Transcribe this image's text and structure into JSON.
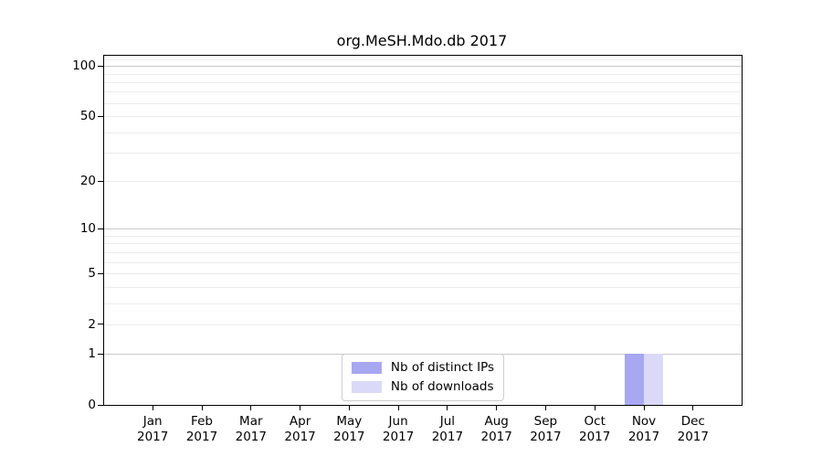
{
  "chart_data": {
    "type": "bar",
    "title": "org.MeSH.Mdo.db 2017",
    "categories": [
      "Jan",
      "Feb",
      "Mar",
      "Apr",
      "May",
      "Jun",
      "Jul",
      "Aug",
      "Sep",
      "Oct",
      "Nov",
      "Dec"
    ],
    "year": "2017",
    "series": [
      {
        "name": "Nb of distinct IPs",
        "color": "#a7a7f2",
        "values": [
          0,
          0,
          0,
          0,
          0,
          0,
          0,
          0,
          0,
          0,
          1,
          0
        ]
      },
      {
        "name": "Nb of downloads",
        "color": "#dadaf8",
        "values": [
          0,
          0,
          0,
          0,
          0,
          0,
          0,
          0,
          0,
          0,
          1,
          0
        ]
      }
    ],
    "xlabel": "",
    "ylabel": "",
    "yscale": "log1p",
    "ylim": [
      0,
      115
    ],
    "y_ticks": [
      0,
      1,
      2,
      5,
      10,
      20,
      50,
      100
    ],
    "y_major_gridlines": [
      1,
      10,
      100
    ],
    "y_minor_gridlines": [
      2,
      3,
      4,
      5,
      6,
      7,
      8,
      9,
      20,
      30,
      40,
      50,
      60,
      70,
      80,
      90,
      110
    ],
    "grid": true,
    "legend_position": "lower center"
  },
  "colors": {
    "spine": "#000000",
    "major_grid": "#c9c9c9",
    "minor_grid": "#ececec",
    "legend_border": "#cccccc"
  }
}
